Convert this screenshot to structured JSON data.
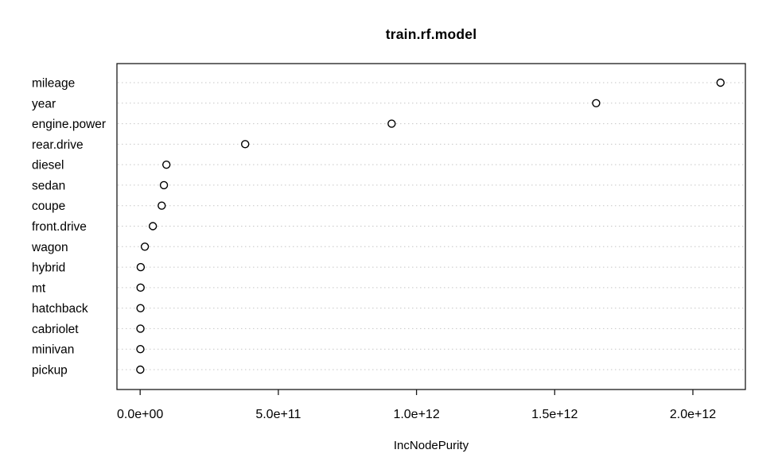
{
  "chart_data": {
    "type": "scatter",
    "variant": "dot-chart-variable-importance",
    "title": "train.rf.model",
    "xlabel": "IncNodePurity",
    "ylabel": "",
    "legend": null,
    "grid": "horizontal-dotted",
    "point_style": "open-circle",
    "categories": [
      "mileage",
      "year",
      "engine.power",
      "rear.drive",
      "diesel",
      "sedan",
      "coupe",
      "front.drive",
      "wagon",
      "hybrid",
      "mt",
      "hatchback",
      "cabriolet",
      "minivan",
      "pickup"
    ],
    "values": [
      2100000000000.0,
      1650000000000.0,
      910000000000.0,
      380000000000.0,
      95000000000.0,
      86000000000.0,
      78000000000.0,
      46000000000.0,
      17000000000.0,
      2000000000.0,
      1500000000.0,
      1200000000.0,
      1000000000.0,
      800000000.0,
      500000000.0
    ],
    "x_ticks": [
      {
        "label": "0.0e+00",
        "value": 0
      },
      {
        "label": "5.0e+11",
        "value": 500000000000.0
      },
      {
        "label": "1.0e+12",
        "value": 1000000000000.0
      },
      {
        "label": "1.5e+12",
        "value": 1500000000000.0
      },
      {
        "label": "2.0e+12",
        "value": 2000000000000.0
      }
    ],
    "xlim": [
      -84000000000.0,
      2190000000000.0
    ],
    "colors": {
      "point_stroke": "#000000",
      "point_fill": "#ffffff",
      "grid": "#c6c6c6",
      "box": "#1a1a1a",
      "text": "#000000",
      "background": "#ffffff"
    }
  }
}
